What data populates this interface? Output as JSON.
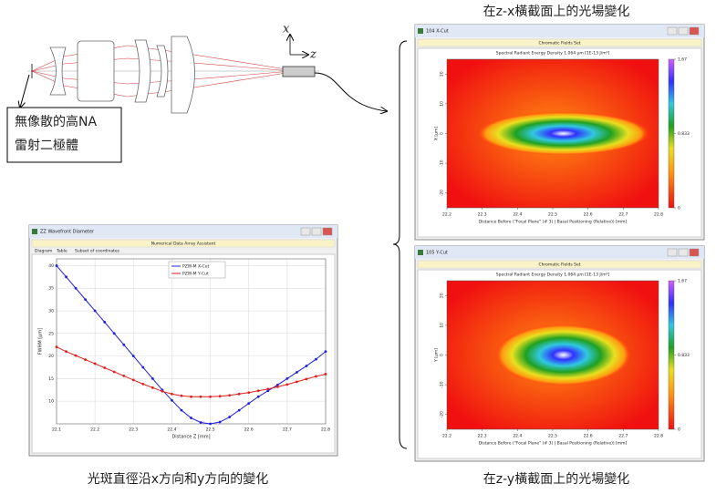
{
  "diagram": {
    "axis_x": "x",
    "axis_z": "z",
    "source_label": [
      "無像散的高NA",
      "雷射二極體"
    ]
  },
  "captions": {
    "zx": "在z-x橫截面上的光場變化",
    "zy": "在z-y橫截面上的光場變化",
    "spot": "光斑直徑沿x方向和y方向的變化"
  },
  "heatmaps": [
    {
      "window_title": "104 X-Cut",
      "banner": "Chromatic Fields Set",
      "heading": "Spectral Radiant Energy Density 1.064 µm  [1E-13 J/m²]",
      "y_label": "X [µm]",
      "x_label": "Distance Before (\"Focal Plane\" (# 3) | Basal Positioning (Relative)) [mm]",
      "xlim": [
        22.2,
        22.8
      ],
      "xticks": [
        22.2,
        22.3,
        22.4,
        22.5,
        22.6,
        22.7,
        22.8
      ],
      "ylim": [
        -25,
        25
      ],
      "yticks": [
        20,
        10,
        0,
        -10,
        -20
      ],
      "colorbar_lim": [
        0,
        1.67
      ],
      "colorbar_ticks": [
        1.67,
        0.833,
        0
      ]
    },
    {
      "window_title": "105 Y-Cut",
      "banner": "Chromatic Fields Set",
      "heading": "Spectral Radiant Energy Density 1.064 µm  [1E-13 J/m²]",
      "y_label": "Y [µm]",
      "x_label": "Distance Before (\"Focal Plane\" (# 3) | Basal Positioning (Relative)) [mm]",
      "xlim": [
        22.2,
        22.8
      ],
      "xticks": [
        22.2,
        22.3,
        22.4,
        22.5,
        22.6,
        22.7,
        22.8
      ],
      "ylim": [
        -25,
        25
      ],
      "yticks": [
        20,
        10,
        0,
        -10,
        -20
      ],
      "colorbar_lim": [
        0,
        1.67
      ],
      "colorbar_ticks": [
        1.67,
        0.833,
        0
      ]
    }
  ],
  "chart_data": {
    "type": "line",
    "window_title": "ZZ Wavefront Diameter",
    "banner": "Numerical Data Array Assistant",
    "tabs": [
      "Diagram",
      "Table",
      "Subset of coordinates"
    ],
    "xlabel": "Distance Z [mm]",
    "ylabel": "FWHM [µm]",
    "x": [
      22.1,
      22.125,
      22.15,
      22.175,
      22.2,
      22.225,
      22.25,
      22.275,
      22.3,
      22.325,
      22.35,
      22.375,
      22.4,
      22.425,
      22.45,
      22.475,
      22.5,
      22.525,
      22.55,
      22.575,
      22.6,
      22.625,
      22.65,
      22.675,
      22.7,
      22.725,
      22.75,
      22.775,
      22.8
    ],
    "series": [
      {
        "name": "PZW-M X-Cut",
        "color": "#1f1fe0",
        "values": [
          40,
          37.5,
          35,
          32.5,
          30,
          27.5,
          25,
          22.5,
          20,
          17.5,
          15,
          12.5,
          10.2,
          8,
          6.3,
          5.3,
          5,
          5.4,
          6.5,
          8,
          9.5,
          11,
          12.3,
          13.6,
          15,
          16.4,
          17.8,
          19.3,
          21
        ]
      },
      {
        "name": "PZW-M Y-Cut",
        "color": "#e01f1f",
        "values": [
          22,
          21,
          20.1,
          19.2,
          18.3,
          17.4,
          16.5,
          15.6,
          14.7,
          13.8,
          13,
          12.2,
          11.6,
          11.2,
          11,
          11,
          11,
          11.1,
          11.3,
          11.6,
          11.9,
          12.3,
          12.7,
          13.2,
          13.7,
          14.3,
          14.9,
          15.5,
          16
        ]
      }
    ],
    "xlim": [
      22.1,
      22.8
    ],
    "ylim": [
      5,
      41.5
    ],
    "xticks": [
      22.1,
      22.2,
      22.3,
      22.4,
      22.5,
      22.6,
      22.7,
      22.8
    ],
    "yticks": [
      10,
      15,
      20,
      25,
      30,
      35,
      40
    ],
    "grid": true
  }
}
